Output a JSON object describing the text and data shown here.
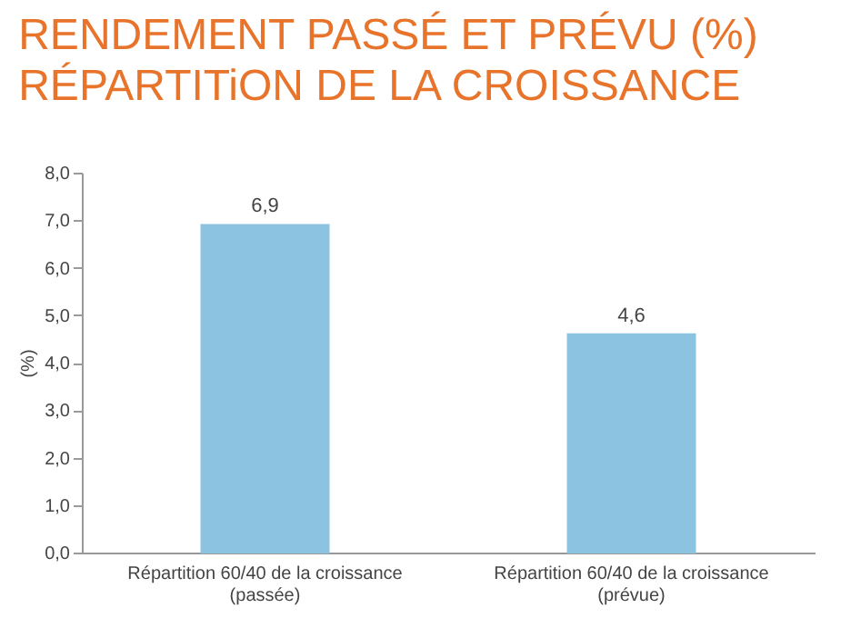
{
  "chart_data": {
    "type": "bar",
    "title": "RENDEMENT PASSÉ ET PRÉVU (%)\nRÉPARTITiON DE LA CROISSANCE",
    "ylabel": "(%)",
    "categories": [
      "Répartition 60/40 de la croissance (passée)",
      "Répartition 60/40 de la croissance (prévue)"
    ],
    "values": [
      6.9,
      4.6
    ],
    "value_labels": [
      "6,9",
      "4,6"
    ],
    "color": "#8cc3e0",
    "ylim": [
      0,
      8
    ],
    "yticks": [
      {
        "value": 0,
        "label": "0,0"
      },
      {
        "value": 1,
        "label": "1,0"
      },
      {
        "value": 2,
        "label": "2,0"
      },
      {
        "value": 3,
        "label": "3,0"
      },
      {
        "value": 4,
        "label": "4,0"
      },
      {
        "value": 5,
        "label": "5,0"
      },
      {
        "value": 6,
        "label": "6,0"
      },
      {
        "value": 7,
        "label": "7,0"
      },
      {
        "value": 8,
        "label": "8,0"
      }
    ],
    "grid": false
  }
}
